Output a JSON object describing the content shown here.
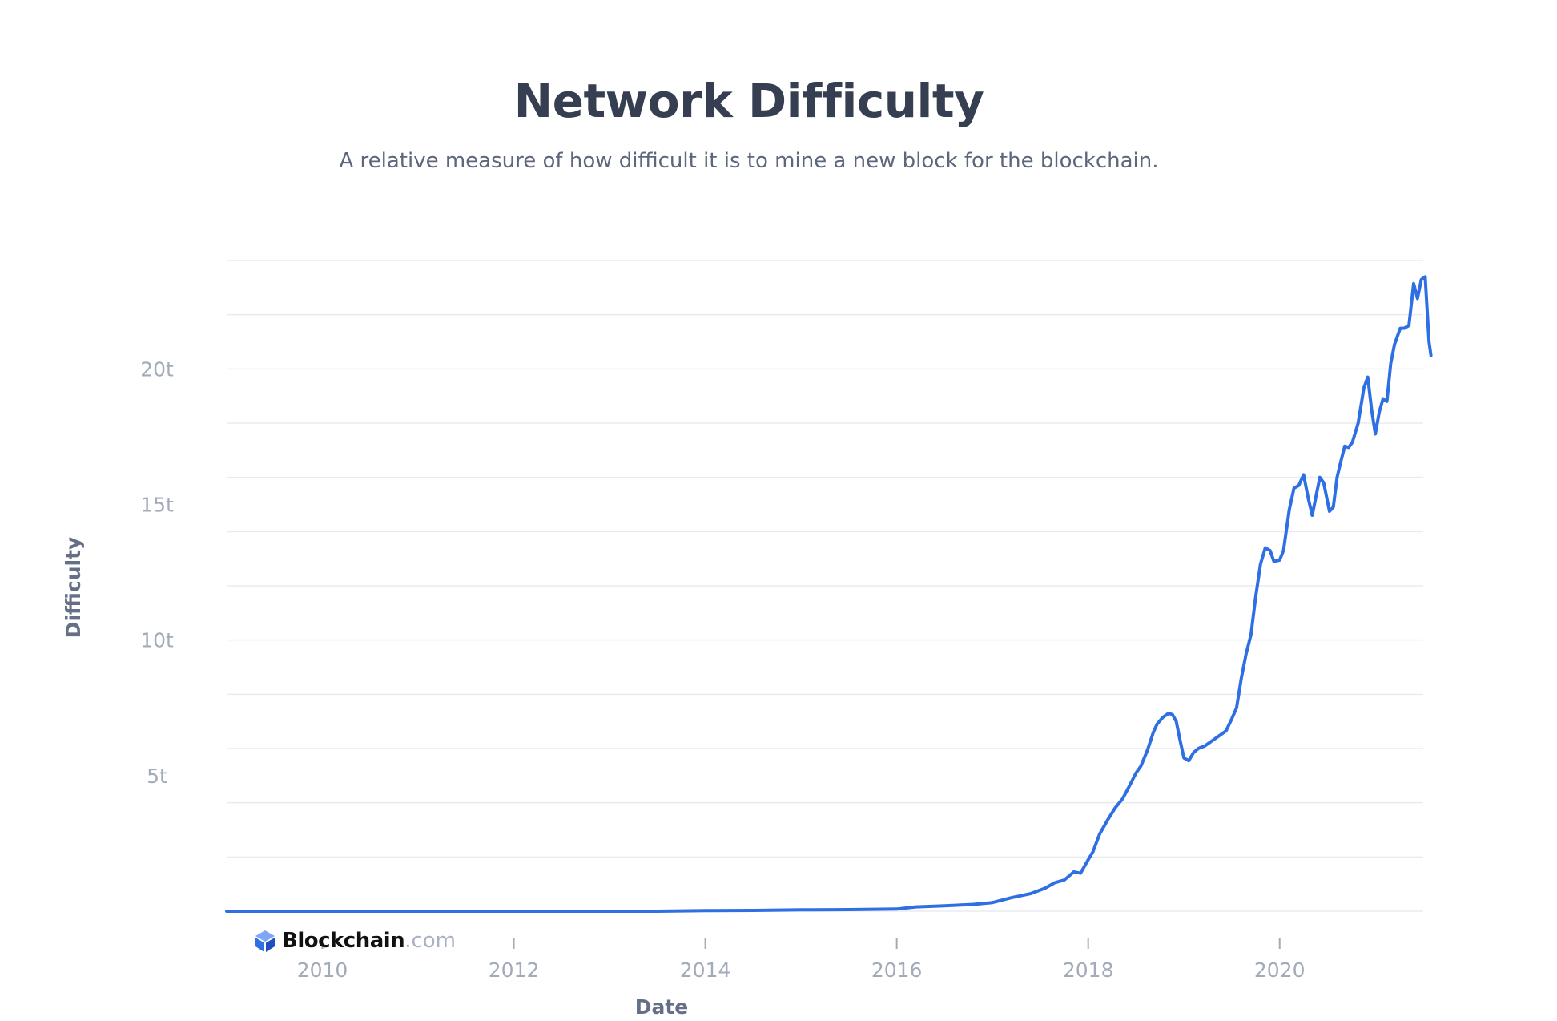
{
  "header": {
    "title": "Network Difficulty",
    "subtitle": "A relative measure of how difficult it is to mine a new block for the blockchain."
  },
  "logo": {
    "brand": "Blockchain",
    "domain": ".com",
    "icon": "blockchain-cube-icon"
  },
  "colors": {
    "line": "#2f6fe4",
    "grid": "#e7e9ee",
    "text": "#353f51",
    "muted": "#a3abbb"
  },
  "chart_data": {
    "type": "line",
    "title": "Network Difficulty",
    "subtitle": "A relative measure of how difficult it is to mine a new block for the blockchain.",
    "xlabel": "Date",
    "ylabel": "Difficulty",
    "x_tick_labels": [
      "2010",
      "2012",
      "2014",
      "2016",
      "2018",
      "2020"
    ],
    "y_tick_labels": [
      "5t",
      "10t",
      "15t",
      "20t"
    ],
    "y_tick_values": [
      5,
      10,
      15,
      20
    ],
    "xlim": [
      2009.0,
      2021.5
    ],
    "ylim": [
      0,
      24
    ],
    "y_unit": "trillion",
    "grid": true,
    "legend": "none",
    "series": [
      {
        "values_trillions": [
          [
            2009.0,
            0.0
          ],
          [
            2012.0,
            0.0
          ],
          [
            2013.5,
            0.0
          ],
          [
            2014.0,
            0.02
          ],
          [
            2014.5,
            0.03
          ],
          [
            2015.0,
            0.05
          ],
          [
            2015.5,
            0.06
          ],
          [
            2016.0,
            0.08
          ],
          [
            2016.2,
            0.16
          ],
          [
            2016.5,
            0.2
          ],
          [
            2016.8,
            0.25
          ],
          [
            2017.0,
            0.32
          ],
          [
            2017.2,
            0.5
          ],
          [
            2017.4,
            0.65
          ],
          [
            2017.55,
            0.85
          ],
          [
            2017.65,
            1.05
          ],
          [
            2017.75,
            1.15
          ],
          [
            2017.85,
            1.45
          ],
          [
            2017.92,
            1.4
          ],
          [
            2018.0,
            1.9
          ],
          [
            2018.05,
            2.2
          ],
          [
            2018.12,
            2.85
          ],
          [
            2018.2,
            3.35
          ],
          [
            2018.28,
            3.8
          ],
          [
            2018.36,
            4.15
          ],
          [
            2018.42,
            4.55
          ],
          [
            2018.5,
            5.1
          ],
          [
            2018.55,
            5.35
          ],
          [
            2018.62,
            5.95
          ],
          [
            2018.68,
            6.6
          ],
          [
            2018.72,
            6.9
          ],
          [
            2018.78,
            7.15
          ],
          [
            2018.84,
            7.3
          ],
          [
            2018.88,
            7.25
          ],
          [
            2018.92,
            7.0
          ],
          [
            2018.96,
            6.3
          ],
          [
            2019.0,
            5.65
          ],
          [
            2019.05,
            5.55
          ],
          [
            2019.1,
            5.85
          ],
          [
            2019.15,
            6.0
          ],
          [
            2019.22,
            6.1
          ],
          [
            2019.3,
            6.3
          ],
          [
            2019.38,
            6.5
          ],
          [
            2019.44,
            6.65
          ],
          [
            2019.5,
            7.1
          ],
          [
            2019.55,
            7.5
          ],
          [
            2019.6,
            8.6
          ],
          [
            2019.65,
            9.5
          ],
          [
            2019.7,
            10.2
          ],
          [
            2019.75,
            11.6
          ],
          [
            2019.8,
            12.8
          ],
          [
            2019.85,
            13.4
          ],
          [
            2019.9,
            13.3
          ],
          [
            2019.94,
            12.9
          ],
          [
            2020.0,
            12.95
          ],
          [
            2020.04,
            13.3
          ],
          [
            2020.1,
            14.8
          ],
          [
            2020.15,
            15.6
          ],
          [
            2020.2,
            15.7
          ],
          [
            2020.25,
            16.1
          ],
          [
            2020.3,
            15.2
          ],
          [
            2020.34,
            14.6
          ],
          [
            2020.38,
            15.3
          ],
          [
            2020.42,
            16.0
          ],
          [
            2020.46,
            15.8
          ],
          [
            2020.52,
            14.75
          ],
          [
            2020.56,
            14.9
          ],
          [
            2020.6,
            16.0
          ],
          [
            2020.64,
            16.6
          ],
          [
            2020.68,
            17.15
          ],
          [
            2020.72,
            17.1
          ],
          [
            2020.76,
            17.3
          ],
          [
            2020.82,
            18.0
          ],
          [
            2020.88,
            19.3
          ],
          [
            2020.92,
            19.7
          ],
          [
            2020.96,
            18.5
          ],
          [
            2021.0,
            17.6
          ],
          [
            2021.04,
            18.4
          ],
          [
            2021.08,
            18.9
          ],
          [
            2021.12,
            18.8
          ],
          [
            2021.16,
            20.2
          ],
          [
            2021.2,
            20.9
          ],
          [
            2021.26,
            21.5
          ],
          [
            2021.3,
            21.5
          ],
          [
            2021.35,
            21.6
          ],
          [
            2021.4,
            23.15
          ],
          [
            2021.44,
            22.6
          ],
          [
            2021.48,
            23.3
          ],
          [
            2021.52,
            23.4
          ],
          [
            2021.56,
            21.0
          ],
          [
            2021.58,
            20.5
          ]
        ]
      }
    ]
  }
}
